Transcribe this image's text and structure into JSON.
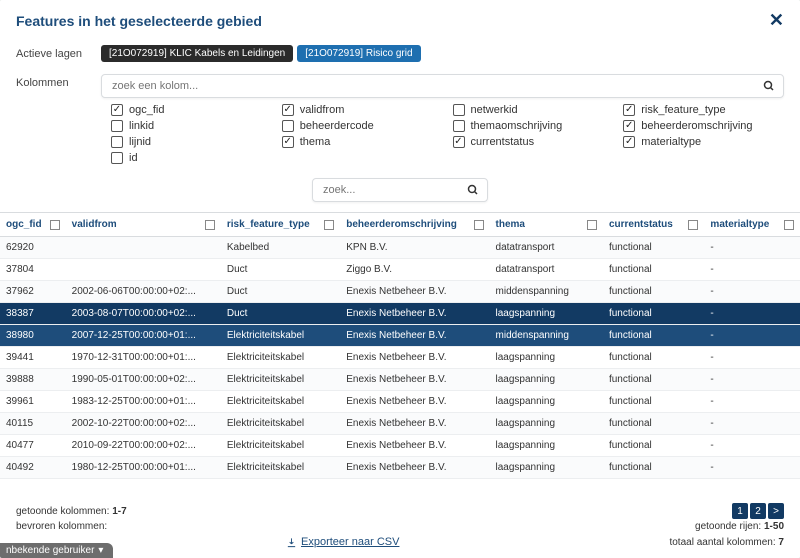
{
  "title": "Features in het geselecteerde gebied",
  "labels": {
    "activeLayers": "Actieve lagen",
    "columns": "Kolommen"
  },
  "layers": [
    {
      "label": "[21O072919] KLIC Kabels en Leidingen",
      "kind": "dark"
    },
    {
      "label": "[21O072919] Risico grid",
      "kind": "blue"
    }
  ],
  "columnSearch": {
    "placeholder": "zoek een kolom..."
  },
  "tableSearch": {
    "placeholder": "zoek..."
  },
  "columnChecks": [
    {
      "label": "ogc_fid",
      "checked": true
    },
    {
      "label": "validfrom",
      "checked": true
    },
    {
      "label": "netwerkid",
      "checked": false
    },
    {
      "label": "risk_feature_type",
      "checked": true
    },
    {
      "label": "linkid",
      "checked": false
    },
    {
      "label": "beheerdercode",
      "checked": false
    },
    {
      "label": "themaomschrijving",
      "checked": false
    },
    {
      "label": "beheerderomschrijving",
      "checked": true
    },
    {
      "label": "lijnid",
      "checked": false
    },
    {
      "label": "thema",
      "checked": true
    },
    {
      "label": "currentstatus",
      "checked": true
    },
    {
      "label": "materialtype",
      "checked": true
    },
    {
      "label": "id",
      "checked": false
    }
  ],
  "headers": [
    "ogc_fid",
    "validfrom",
    "risk_feature_type",
    "beheerderomschrijving",
    "thema",
    "currentstatus",
    "materialtype"
  ],
  "rows": [
    {
      "sel": "",
      "c": [
        "62920",
        "",
        "Kabelbed",
        "KPN B.V.",
        "datatransport",
        "functional",
        "-"
      ]
    },
    {
      "sel": "",
      "c": [
        "37804",
        "",
        "Duct",
        "Ziggo B.V.",
        "datatransport",
        "functional",
        "-"
      ]
    },
    {
      "sel": "",
      "c": [
        "37962",
        "2002-06-06T00:00:00+02:...",
        "Duct",
        "Enexis Netbeheer B.V.",
        "middenspanning",
        "functional",
        "-"
      ]
    },
    {
      "sel": "sel",
      "c": [
        "38387",
        "2003-08-07T00:00:00+02:...",
        "Duct",
        "Enexis Netbeheer B.V.",
        "laagspanning",
        "functional",
        "-"
      ]
    },
    {
      "sel": "sel2",
      "c": [
        "38980",
        "2007-12-25T00:00:00+01:...",
        "Elektriciteitskabel",
        "Enexis Netbeheer B.V.",
        "middenspanning",
        "functional",
        "-"
      ]
    },
    {
      "sel": "",
      "c": [
        "39441",
        "1970-12-31T00:00:00+01:...",
        "Elektriciteitskabel",
        "Enexis Netbeheer B.V.",
        "laagspanning",
        "functional",
        "-"
      ]
    },
    {
      "sel": "",
      "c": [
        "39888",
        "1990-05-01T00:00:00+02:...",
        "Elektriciteitskabel",
        "Enexis Netbeheer B.V.",
        "laagspanning",
        "functional",
        "-"
      ]
    },
    {
      "sel": "",
      "c": [
        "39961",
        "1983-12-25T00:00:00+01:...",
        "Elektriciteitskabel",
        "Enexis Netbeheer B.V.",
        "laagspanning",
        "functional",
        "-"
      ]
    },
    {
      "sel": "",
      "c": [
        "40115",
        "2002-10-22T00:00:00+02:...",
        "Elektriciteitskabel",
        "Enexis Netbeheer B.V.",
        "laagspanning",
        "functional",
        "-"
      ]
    },
    {
      "sel": "",
      "c": [
        "40477",
        "2010-09-22T00:00:00+02:...",
        "Elektriciteitskabel",
        "Enexis Netbeheer B.V.",
        "laagspanning",
        "functional",
        "-"
      ]
    },
    {
      "sel": "",
      "c": [
        "40492",
        "1980-12-25T00:00:00+01:...",
        "Elektriciteitskabel",
        "Enexis Netbeheer B.V.",
        "laagspanning",
        "functional",
        "-"
      ]
    }
  ],
  "footer": {
    "shownColsLabel": "getoonde kolommen:",
    "shownColsValue": "1-7",
    "frozenColsLabel": "bevroren kolommen:",
    "shownRowsLabel": "getoonde rijen:",
    "shownRowsValue": "1-50",
    "totalColsLabel": "totaal aantal kolommen:",
    "totalColsValue": "7",
    "exportLabel": "Exporteer naar CSV",
    "pages": [
      "1",
      "2",
      ">"
    ]
  },
  "userTag": "nbekende gebruiker",
  "colWidths": [
    "55px",
    "130px",
    "100px",
    "125px",
    "95px",
    "85px",
    "80px"
  ]
}
